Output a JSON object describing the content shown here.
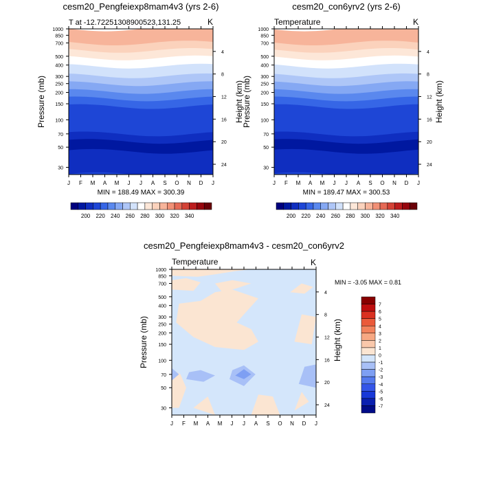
{
  "colors": {
    "temp_scale": [
      "#00007e",
      "#0018a0",
      "#0f2ec0",
      "#1e46d6",
      "#3666e6",
      "#5a88ee",
      "#85a8f3",
      "#aec6f7",
      "#d2e2fb",
      "#ffffff",
      "#fde7d8",
      "#fbd2bc",
      "#f7b49a",
      "#f19076",
      "#e56a56",
      "#d44236",
      "#bc1d1e",
      "#96060e",
      "#6a0008"
    ],
    "diff_scale": [
      "#000c88",
      "#0a20b0",
      "#1838d8",
      "#3455e8",
      "#557aee",
      "#7e9ff3",
      "#a8c0f7",
      "#d3e5fb",
      "#fbe5d2",
      "#f9c8ab",
      "#f7a883",
      "#f2825c",
      "#ea5a3a",
      "#da3020",
      "#be0e0e",
      "#880000"
    ]
  },
  "chart_data": [
    {
      "type": "heatmap",
      "id": "left",
      "title": "cesm20_Pengfeiexp8mam4v3 (yrs 2-6)",
      "subtitle_left": "T at -12.72251308900523,131.25",
      "subtitle_right": "K",
      "xlabel": "",
      "ylabel": "Pressure (mb)",
      "ylabel_right": "Height (km)",
      "x_ticks": [
        "J",
        "F",
        "M",
        "A",
        "M",
        "J",
        "J",
        "A",
        "S",
        "O",
        "N",
        "D",
        "J"
      ],
      "y_ticks": [
        "30",
        "50",
        "70",
        "100",
        "150",
        "200",
        "250",
        "300",
        "400",
        "500",
        "700",
        "850",
        "1000"
      ],
      "y_right_ticks": [
        "24",
        "20",
        "16",
        "12",
        "8",
        "4"
      ],
      "minmax": "MIN = 188.49  MAX = 300.39",
      "colorbar_labels": [
        "200",
        "220",
        "240",
        "260",
        "280",
        "300",
        "320",
        "340"
      ],
      "band_levels": [
        210,
        200,
        190,
        200,
        210,
        220,
        230,
        240,
        250,
        260,
        270,
        280,
        290,
        300
      ]
    },
    {
      "type": "heatmap",
      "id": "right",
      "title": "cesm20_con6yrv2 (yrs 2-6)",
      "subtitle_left": "Temperature",
      "subtitle_right": "K",
      "xlabel": "",
      "ylabel": "Pressure (mb)",
      "ylabel_right": "Height (km)",
      "x_ticks": [
        "J",
        "F",
        "M",
        "A",
        "M",
        "J",
        "J",
        "A",
        "S",
        "O",
        "N",
        "D",
        "J"
      ],
      "y_ticks": [
        "30",
        "50",
        "70",
        "100",
        "150",
        "200",
        "250",
        "300",
        "400",
        "500",
        "700",
        "850",
        "1000"
      ],
      "y_right_ticks": [
        "24",
        "20",
        "16",
        "12",
        "8",
        "4"
      ],
      "minmax": "MIN = 189.47  MAX = 300.53",
      "colorbar_labels": [
        "200",
        "220",
        "240",
        "260",
        "280",
        "300",
        "320",
        "340"
      ],
      "band_levels": [
        210,
        200,
        190,
        200,
        210,
        220,
        230,
        240,
        250,
        260,
        270,
        280,
        290,
        300
      ]
    },
    {
      "type": "heatmap",
      "id": "diff",
      "title": "cesm20_Pengfeiexp8mam4v3 - cesm20_con6yrv2",
      "subtitle_left": "Temperature",
      "subtitle_right": "K",
      "xlabel": "",
      "ylabel": "Pressure (mb)",
      "ylabel_right": "Height (km)",
      "x_ticks": [
        "J",
        "F",
        "M",
        "A",
        "M",
        "J",
        "J",
        "A",
        "S",
        "O",
        "N",
        "D",
        "J"
      ],
      "y_ticks": [
        "30",
        "50",
        "70",
        "100",
        "150",
        "200",
        "250",
        "300",
        "400",
        "500",
        "700",
        "850",
        "1000"
      ],
      "y_right_ticks": [
        "24",
        "20",
        "16",
        "12",
        "8",
        "4"
      ],
      "minmax": "MIN = -3.05 MAX =  0.81",
      "colorbar_labels": [
        "7",
        "6",
        "5",
        "4",
        "3",
        "2",
        "1",
        "0",
        "-1",
        "-2",
        "-3",
        "-4",
        "-5",
        "-6",
        "-7"
      ]
    }
  ]
}
